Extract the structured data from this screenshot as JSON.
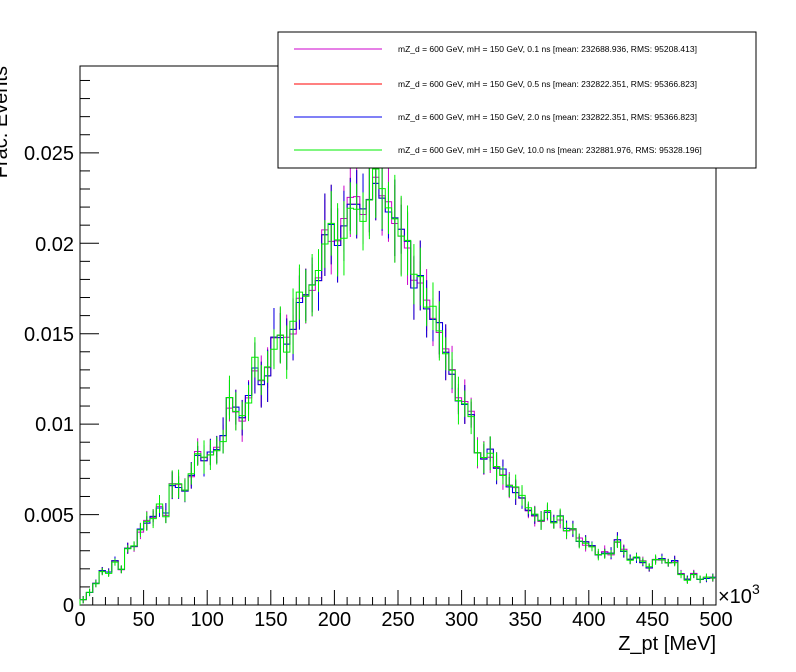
{
  "chart_data": {
    "type": "line",
    "style": "step histogram with error bars",
    "xlabel": "Z_pt [MeV]",
    "ylabel": "Frac. Events",
    "x_multiplier_label": "×10",
    "x_multiplier_exp": "3",
    "xlim": [
      0,
      500
    ],
    "ylim": [
      0,
      0.0298
    ],
    "x_ticks": [
      "0",
      "50",
      "100",
      "150",
      "200",
      "250",
      "300",
      "350",
      "400",
      "450",
      "500"
    ],
    "y_ticks": [
      "0",
      "0.005",
      "0.01",
      "0.015",
      "0.02",
      "0.025"
    ],
    "legend_position": "top-right",
    "bin_width_kMeV": 5,
    "series": [
      {
        "name": "mZ_d = 600 GeV, mH = 150 GeV, 0.1 ns [mean: 232688.936, RMS: 95208.413]",
        "color": "#cc00cc",
        "seed": 11
      },
      {
        "name": "mZ_d = 600 GeV, mH = 150 GeV, 0.5 ns [mean: 232822.351, RMS: 95366.823]",
        "color": "#ff0000",
        "seed": 23
      },
      {
        "name": "mZ_d = 600 GeV, mH = 150 GeV, 2.0 ns [mean: 232822.351, RMS: 95366.823]",
        "color": "#0000ee",
        "seed": 23
      },
      {
        "name": "mZ_d = 600 GeV, mH = 150 GeV, 10.0 ns [mean: 232881.976, RMS: 95328.196]",
        "color": "#00ee00",
        "seed": 37
      }
    ],
    "shape_points": {
      "x": [
        0,
        5,
        10,
        15,
        20,
        25,
        30,
        35,
        40,
        45,
        50,
        55,
        60,
        65,
        70,
        75,
        80,
        85,
        90,
        95,
        100,
        105,
        110,
        115,
        120,
        125,
        130,
        135,
        140,
        145,
        150,
        155,
        160,
        165,
        170,
        175,
        180,
        185,
        190,
        195,
        200,
        205,
        210,
        215,
        220,
        225,
        230,
        235,
        240,
        245,
        250,
        255,
        260,
        265,
        270,
        275,
        280,
        285,
        290,
        295,
        300,
        305,
        310,
        315,
        320,
        325,
        330,
        335,
        340,
        345,
        350,
        355,
        360,
        365,
        370,
        375,
        380,
        385,
        390,
        395,
        400,
        405,
        410,
        415,
        420,
        425,
        430,
        435,
        440,
        445,
        450,
        455,
        460,
        465,
        470,
        475,
        480,
        485,
        490,
        495
      ],
      "y": [
        0.0003,
        0.0007,
        0.0012,
        0.0019,
        0.0018,
        0.0024,
        0.002,
        0.0031,
        0.0033,
        0.0041,
        0.0046,
        0.0049,
        0.0055,
        0.005,
        0.0067,
        0.0066,
        0.0064,
        0.0071,
        0.0084,
        0.0082,
        0.0085,
        0.0086,
        0.0092,
        0.0112,
        0.0108,
        0.0104,
        0.0114,
        0.0133,
        0.0125,
        0.0128,
        0.0145,
        0.0147,
        0.0144,
        0.0154,
        0.0171,
        0.0168,
        0.0179,
        0.0184,
        0.0203,
        0.0205,
        0.0204,
        0.0209,
        0.0222,
        0.022,
        0.0213,
        0.0229,
        0.0237,
        0.0225,
        0.0222,
        0.0212,
        0.0207,
        0.0196,
        0.018,
        0.0183,
        0.0166,
        0.0162,
        0.0155,
        0.014,
        0.0131,
        0.0114,
        0.0114,
        0.0104,
        0.0086,
        0.0083,
        0.0084,
        0.0076,
        0.0073,
        0.0067,
        0.0064,
        0.0059,
        0.0053,
        0.0049,
        0.0047,
        0.0051,
        0.0046,
        0.0048,
        0.0042,
        0.0041,
        0.0036,
        0.0034,
        0.0033,
        0.0028,
        0.0029,
        0.0028,
        0.0035,
        0.003,
        0.0025,
        0.0026,
        0.0024,
        0.0021,
        0.0025,
        0.0025,
        0.0024,
        0.0024,
        0.0017,
        0.0014,
        0.0017,
        0.0014,
        0.0015,
        0.0015
      ]
    },
    "error_rel": 0.09
  }
}
